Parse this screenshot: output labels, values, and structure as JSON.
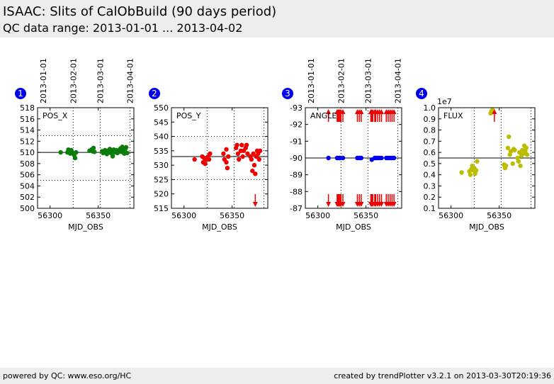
{
  "header": {
    "title": "ISAAC: Slits of CalObBuild (90 days period)",
    "subtitle": "QC data range: 2013-01-01 ... 2013-04-02"
  },
  "footer": {
    "left": "powered by QC: www.eso.org/HC",
    "right": "created by trendPlotter v3.2.1 on 2013-03-30T20:19:36"
  },
  "colors": {
    "green": "#0a7d0a",
    "red": "#ee0000",
    "blue": "#0000ee",
    "olive": "#bcbc00",
    "badge": "#0000ee"
  },
  "chart_data": [
    {
      "type": "scatter",
      "badge": "1",
      "label": "POS_X",
      "xlabel": "MJD_OBS",
      "color": "green",
      "xlim": [
        56287,
        56387
      ],
      "ylim": [
        500,
        518
      ],
      "yticks": [
        500,
        502,
        504,
        506,
        508,
        510,
        512,
        514,
        516,
        518
      ],
      "xticks": [
        56300,
        56350
      ],
      "ref": 510,
      "band": [
        505,
        513
      ],
      "date_ticks": [
        "2013-01-01",
        "2013-02-01",
        "2013-03-01",
        "2013-04-01"
      ],
      "date_mjd": [
        56293,
        56324,
        56352,
        56383
      ],
      "points": [
        [
          56311,
          510
        ],
        [
          56318,
          510
        ],
        [
          56319,
          510.5
        ],
        [
          56320,
          510.2
        ],
        [
          56321,
          509.8
        ],
        [
          56322,
          510.4
        ],
        [
          56323,
          510
        ],
        [
          56325,
          509.5
        ],
        [
          56326,
          509
        ],
        [
          56327,
          510
        ],
        [
          56341,
          510.3
        ],
        [
          56343,
          510.5
        ],
        [
          56344,
          510.2
        ],
        [
          56345,
          510.8
        ],
        [
          56346,
          510.1
        ],
        [
          56354,
          510.2
        ],
        [
          56355,
          509.9
        ],
        [
          56356,
          510
        ],
        [
          56357,
          510.4
        ],
        [
          56359,
          509.7
        ],
        [
          56360,
          510.3
        ],
        [
          56362,
          510.6
        ],
        [
          56363,
          509.9
        ],
        [
          56364,
          510.2
        ],
        [
          56365,
          509.3
        ],
        [
          56366,
          510.5
        ],
        [
          56367,
          510
        ],
        [
          56369,
          510.4
        ],
        [
          56370,
          509.9
        ],
        [
          56372,
          510.2
        ],
        [
          56373,
          510.7
        ],
        [
          56374,
          510.1
        ],
        [
          56375,
          511
        ],
        [
          56376,
          510.3
        ],
        [
          56377,
          509.8
        ],
        [
          56378,
          510.6
        ],
        [
          56379,
          510.9
        ],
        [
          56380,
          509.9
        ]
      ],
      "arrows_up": [],
      "arrows_down": []
    },
    {
      "type": "scatter",
      "badge": "2",
      "label": "POS_Y",
      "xlabel": "MJD_OBS",
      "color": "red",
      "xlim": [
        56287,
        56387
      ],
      "ylim": [
        515,
        550
      ],
      "yticks": [
        515,
        520,
        525,
        530,
        535,
        540,
        545,
        550
      ],
      "xticks": [
        56300,
        56350
      ],
      "ref": 533,
      "band": [
        525,
        540
      ],
      "date_ticks": [],
      "date_mjd": [],
      "points": [
        [
          56311,
          532
        ],
        [
          56319,
          533
        ],
        [
          56320,
          531
        ],
        [
          56321,
          532.5
        ],
        [
          56322,
          530.5
        ],
        [
          56323,
          532
        ],
        [
          56325,
          533
        ],
        [
          56326,
          532
        ],
        [
          56327,
          534
        ],
        [
          56341,
          534
        ],
        [
          56342,
          532
        ],
        [
          56344,
          531
        ],
        [
          56344,
          535.5
        ],
        [
          56345,
          529
        ],
        [
          56346,
          533
        ],
        [
          56354,
          536
        ],
        [
          56355,
          537
        ],
        [
          56356,
          534
        ],
        [
          56357,
          532
        ],
        [
          56359,
          535
        ],
        [
          56360,
          537
        ],
        [
          56361,
          533
        ],
        [
          56362,
          535
        ],
        [
          56364,
          536
        ],
        [
          56365,
          537
        ],
        [
          56366,
          534
        ],
        [
          56369,
          533
        ],
        [
          56370,
          532
        ],
        [
          56371,
          528
        ],
        [
          56372,
          534
        ],
        [
          56373,
          530
        ],
        [
          56374,
          527
        ],
        [
          56375,
          533
        ],
        [
          56376,
          535
        ],
        [
          56377,
          534
        ],
        [
          56378,
          532
        ],
        [
          56379,
          535
        ]
      ],
      "arrows_up": [],
      "arrows_down": [
        56374
      ]
    },
    {
      "type": "scatter",
      "badge": "3",
      "label": "ANGLE",
      "xlabel": "MJD_OBS",
      "color": "blue",
      "xlim": [
        56287,
        56387
      ],
      "ylim": [
        -87,
        -93
      ],
      "inverted": true,
      "yticks": [
        -93,
        -92,
        -91,
        -90,
        -89,
        -88,
        -87
      ],
      "xticks": [
        56300,
        56350
      ],
      "ref": -90,
      "band": null,
      "date_ticks": [
        "2013-01-01",
        "2013-02-01",
        "2013-03-01",
        "2013-04-01"
      ],
      "date_mjd": [
        56293,
        56324,
        56352,
        56383
      ],
      "points": [
        [
          56311,
          -90
        ],
        [
          56320,
          -90
        ],
        [
          56322,
          -90
        ],
        [
          56323,
          -90
        ],
        [
          56326,
          -90
        ],
        [
          56341,
          -90
        ],
        [
          56343,
          -90
        ],
        [
          56345,
          -90
        ],
        [
          56356,
          -89.9
        ],
        [
          56359,
          -90
        ],
        [
          56360,
          -90
        ],
        [
          56362,
          -90
        ],
        [
          56364,
          -90
        ],
        [
          56366,
          -90
        ],
        [
          56371,
          -90
        ],
        [
          56373,
          -90
        ],
        [
          56375,
          -90
        ],
        [
          56377,
          -90
        ],
        [
          56379,
          -90
        ]
      ],
      "arrows_up": [
        56311,
        56320,
        56321,
        56322,
        56323,
        56324,
        56326,
        56341,
        56343,
        56345,
        56355,
        56356,
        56357,
        56359,
        56360,
        56362,
        56364,
        56366,
        56371,
        56373,
        56375,
        56377,
        56379
      ],
      "arrows_down": [
        56311,
        56320,
        56321,
        56322,
        56323,
        56324,
        56326,
        56341,
        56343,
        56345,
        56355,
        56356,
        56357,
        56359,
        56360,
        56362,
        56364,
        56366,
        56371,
        56373,
        56375,
        56377,
        56379
      ]
    },
    {
      "type": "scatter",
      "badge": "4",
      "label": "FLUX",
      "xlabel": "MJD_OBS",
      "color": "olive",
      "xlim": [
        56287,
        56387
      ],
      "ylim": [
        0.1,
        1.0
      ],
      "yticks": [
        0.1,
        0.2,
        0.3,
        0.4,
        0.5,
        0.6,
        0.7,
        0.8,
        0.9,
        1.0
      ],
      "ytick_labels": [
        "0.1",
        "0.2",
        "0.3",
        "0.4",
        "0.5",
        "0.6",
        "0.7",
        "0.8",
        "0.9",
        "1.0"
      ],
      "scale_label": "1e7",
      "xticks": [
        56300,
        56350
      ],
      "ref": 0.55,
      "band": null,
      "date_ticks": [],
      "date_mjd": [],
      "points": [
        [
          56311,
          0.42
        ],
        [
          56319,
          0.43
        ],
        [
          56320,
          0.4
        ],
        [
          56321,
          0.45
        ],
        [
          56322,
          0.48
        ],
        [
          56323,
          0.44
        ],
        [
          56324,
          0.46
        ],
        [
          56325,
          0.41
        ],
        [
          56326,
          0.44
        ],
        [
          56327,
          0.52
        ],
        [
          56341,
          0.95
        ],
        [
          56342,
          0.97
        ],
        [
          56343,
          0.98
        ],
        [
          56355,
          0.49
        ],
        [
          56356,
          0.46
        ],
        [
          56357,
          0.48
        ],
        [
          56359,
          0.64
        ],
        [
          56360,
          0.74
        ],
        [
          56361,
          0.58
        ],
        [
          56362,
          0.61
        ],
        [
          56364,
          0.5
        ],
        [
          56365,
          0.63
        ],
        [
          56366,
          0.62
        ],
        [
          56369,
          0.55
        ],
        [
          56370,
          0.52
        ],
        [
          56371,
          0.6
        ],
        [
          56372,
          0.48
        ],
        [
          56373,
          0.57
        ],
        [
          56374,
          0.62
        ],
        [
          56375,
          0.59
        ],
        [
          56376,
          0.66
        ],
        [
          56377,
          0.61
        ],
        [
          56378,
          0.64
        ],
        [
          56379,
          0.58
        ]
      ],
      "arrows_up": [
        56345
      ],
      "arrows_down": []
    }
  ]
}
